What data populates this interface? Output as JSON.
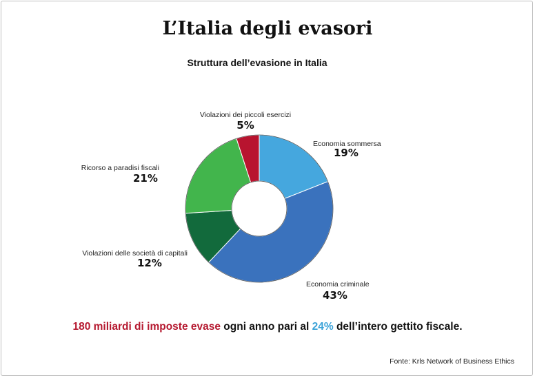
{
  "title": "L’Italia degli evasori",
  "subtitle": "Struttura dell’evasione in Italia",
  "chart_data": {
    "type": "pie",
    "donut": true,
    "slices": [
      {
        "label": "Economia sommersa",
        "value": 19,
        "display": "19%",
        "color": "#45a7de"
      },
      {
        "label": "Economia criminale",
        "value": 43,
        "display": "43%",
        "color": "#3a72bd"
      },
      {
        "label": "Violazioni delle società di capitali",
        "value": 12,
        "display": "12%",
        "color": "#126a3c"
      },
      {
        "label": "Ricorso a paradisi fiscali",
        "value": 21,
        "display": "21%",
        "color": "#42b54c"
      },
      {
        "label": "Violazioni dei piccoli esercizi",
        "value": 5,
        "display": "5%",
        "color": "#b8142f"
      }
    ]
  },
  "footer": {
    "part1": "180 miliardi di imposte evase",
    "part2": " ogni anno pari al ",
    "part3": "24%",
    "part4": " dell’intero gettito fiscale.",
    "colors": {
      "highlight_red": "#b5182f",
      "highlight_blue": "#3aa2d8"
    }
  },
  "source": "Fonte: Krls Network of Business Ethics"
}
